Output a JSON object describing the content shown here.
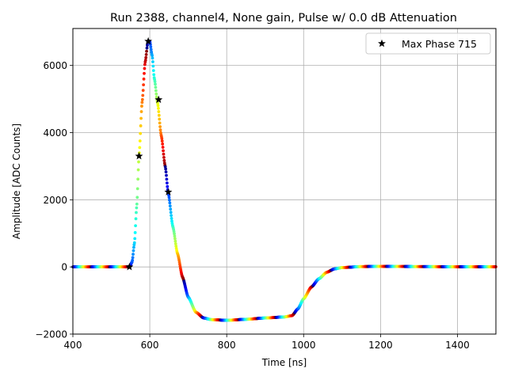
{
  "chart_data": {
    "type": "scatter",
    "title": "Run 2388, channel4, None gain, Pulse w/ 0.0 dB Attenuation",
    "xlabel": "Time [ns]",
    "ylabel": "Amplitude [ADC Counts]",
    "xlim": [
      400,
      1500
    ],
    "ylim": [
      -2000,
      7100
    ],
    "xticks": [
      400,
      600,
      800,
      1000,
      1200,
      1400
    ],
    "yticks": [
      -2000,
      0,
      2000,
      4000,
      6000
    ],
    "xtick_labels": [
      "400",
      "600",
      "800",
      "1000",
      "1200",
      "1400"
    ],
    "ytick_labels": [
      "−2000",
      "0",
      "2000",
      "4000",
      "6000"
    ],
    "grid": true,
    "legend_position": "top-right",
    "legend": {
      "label": "Max Phase 715"
    },
    "colormap": "jet",
    "waveform": [
      [
        400,
        0
      ],
      [
        540,
        0
      ],
      [
        548,
        10
      ],
      [
        554,
        150
      ],
      [
        560,
        700
      ],
      [
        566,
        1800
      ],
      [
        572,
        3300
      ],
      [
        580,
        4900
      ],
      [
        588,
        6100
      ],
      [
        595,
        6700
      ],
      [
        600,
        6720
      ],
      [
        606,
        6300
      ],
      [
        612,
        5600
      ],
      [
        620,
        4900
      ],
      [
        630,
        3900
      ],
      [
        640,
        3000
      ],
      [
        648,
        2200
      ],
      [
        660,
        1200
      ],
      [
        672,
        400
      ],
      [
        685,
        -300
      ],
      [
        700,
        -900
      ],
      [
        720,
        -1350
      ],
      [
        740,
        -1520
      ],
      [
        760,
        -1570
      ],
      [
        800,
        -1590
      ],
      [
        850,
        -1560
      ],
      [
        900,
        -1520
      ],
      [
        950,
        -1490
      ],
      [
        970,
        -1450
      ],
      [
        985,
        -1250
      ],
      [
        1000,
        -950
      ],
      [
        1020,
        -600
      ],
      [
        1040,
        -350
      ],
      [
        1060,
        -160
      ],
      [
        1080,
        -60
      ],
      [
        1100,
        -20
      ],
      [
        1150,
        10
      ],
      [
        1200,
        15
      ],
      [
        1300,
        10
      ],
      [
        1400,
        5
      ],
      [
        1500,
        5
      ]
    ],
    "markers": {
      "name": "Max Phase 715",
      "x": [
        547,
        572,
        596,
        623,
        648
      ],
      "y": [
        0,
        3300,
        6720,
        4980,
        2230
      ]
    }
  }
}
